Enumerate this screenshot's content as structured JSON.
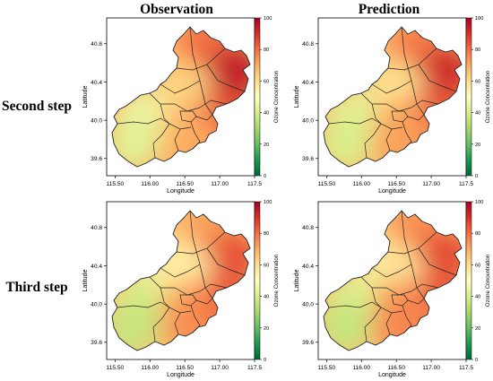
{
  "column_titles": [
    "Observation",
    "Prediction"
  ],
  "row_titles": [
    "Second step",
    "Third step"
  ],
  "chart_data": [
    {
      "type": "heatmap",
      "row": "Second step",
      "column": "Observation",
      "xlabel": "Longitude",
      "ylabel": "Latitude",
      "x_ticks": [
        "115.50",
        "116.00",
        "116.50",
        "117.00",
        "117.5"
      ],
      "y_ticks": [
        "39.6",
        "40.0",
        "40.4",
        "40.8"
      ],
      "xlim": [
        115.38,
        117.5
      ],
      "ylim": [
        39.42,
        41.07
      ],
      "colorbar_label": "Ozone Concentration",
      "colorbar_ticks": [
        "0",
        "20",
        "40",
        "60",
        "80",
        "100"
      ],
      "colorbar_range": [
        0,
        100
      ],
      "colormap": [
        "#006837",
        "#1a9850",
        "#66bd63",
        "#a6d96a",
        "#d9ef8b",
        "#ffffbf",
        "#fee08b",
        "#fdae61",
        "#f46d43",
        "#d73027",
        "#a50026"
      ],
      "region_values": {
        "north": 80,
        "northwest": 66,
        "northeast": 95,
        "center_north": 62,
        "west": 45,
        "southwest": 42,
        "center": 65,
        "east": 88,
        "southeast": 78,
        "south": 70
      }
    },
    {
      "type": "heatmap",
      "row": "Second step",
      "column": "Prediction",
      "xlabel": "Longitude",
      "ylabel": "Latitude",
      "x_ticks": [
        "115.50",
        "116.00",
        "116.50",
        "117.00",
        "117.5"
      ],
      "y_ticks": [
        "39.6",
        "40.0",
        "40.4",
        "40.8"
      ],
      "xlim": [
        115.38,
        117.5
      ],
      "ylim": [
        39.42,
        41.07
      ],
      "colorbar_label": "Ozone Concentration",
      "colorbar_ticks": [
        "0",
        "20",
        "40",
        "60",
        "80",
        "100"
      ],
      "colorbar_range": [
        0,
        100
      ],
      "colormap": [
        "#006837",
        "#1a9850",
        "#66bd63",
        "#a6d96a",
        "#d9ef8b",
        "#ffffbf",
        "#fee08b",
        "#fdae61",
        "#f46d43",
        "#d73027",
        "#a50026"
      ],
      "region_values": {
        "north": 78,
        "northwest": 64,
        "northeast": 92,
        "center_north": 58,
        "west": 42,
        "southwest": 40,
        "center": 68,
        "east": 86,
        "southeast": 76,
        "south": 72
      }
    },
    {
      "type": "heatmap",
      "row": "Third step",
      "column": "Observation",
      "xlabel": "Longitude",
      "ylabel": "Latitude",
      "x_ticks": [
        "115.50",
        "116.00",
        "116.50",
        "117.00",
        "117.5"
      ],
      "y_ticks": [
        "39.6",
        "40.0",
        "40.4",
        "40.8"
      ],
      "xlim": [
        115.38,
        117.5
      ],
      "ylim": [
        39.42,
        41.07
      ],
      "colorbar_label": "Ozone Concentration",
      "colorbar_ticks": [
        "0",
        "20",
        "40",
        "60",
        "80",
        "100"
      ],
      "colorbar_range": [
        0,
        100
      ],
      "colormap": [
        "#006837",
        "#1a9850",
        "#66bd63",
        "#a6d96a",
        "#d9ef8b",
        "#ffffbf",
        "#fee08b",
        "#fdae61",
        "#f46d43",
        "#d73027",
        "#a50026"
      ],
      "region_values": {
        "north": 72,
        "northwest": 55,
        "northeast": 85,
        "center_north": 55,
        "west": 40,
        "southwest": 36,
        "center": 70,
        "east": 84,
        "southeast": 80,
        "south": 75
      }
    },
    {
      "type": "heatmap",
      "row": "Third step",
      "column": "Prediction",
      "xlabel": "Longitude",
      "ylabel": "Latitude",
      "x_ticks": [
        "115.50",
        "116.00",
        "116.50",
        "117.00",
        "117.5"
      ],
      "y_ticks": [
        "39.6",
        "40.0",
        "40.4",
        "40.8"
      ],
      "xlim": [
        115.38,
        117.5
      ],
      "ylim": [
        39.42,
        41.07
      ],
      "colorbar_label": "Ozone Concentration",
      "colorbar_ticks": [
        "0",
        "20",
        "40",
        "60",
        "80",
        "100"
      ],
      "colorbar_range": [
        0,
        100
      ],
      "colormap": [
        "#006837",
        "#1a9850",
        "#66bd63",
        "#a6d96a",
        "#d9ef8b",
        "#ffffbf",
        "#fee08b",
        "#fdae61",
        "#f46d43",
        "#d73027",
        "#a50026"
      ],
      "region_values": {
        "north": 75,
        "northwest": 58,
        "northeast": 86,
        "center_north": 57,
        "west": 41,
        "southwest": 36,
        "center": 72,
        "east": 85,
        "southeast": 78,
        "south": 76
      }
    }
  ]
}
